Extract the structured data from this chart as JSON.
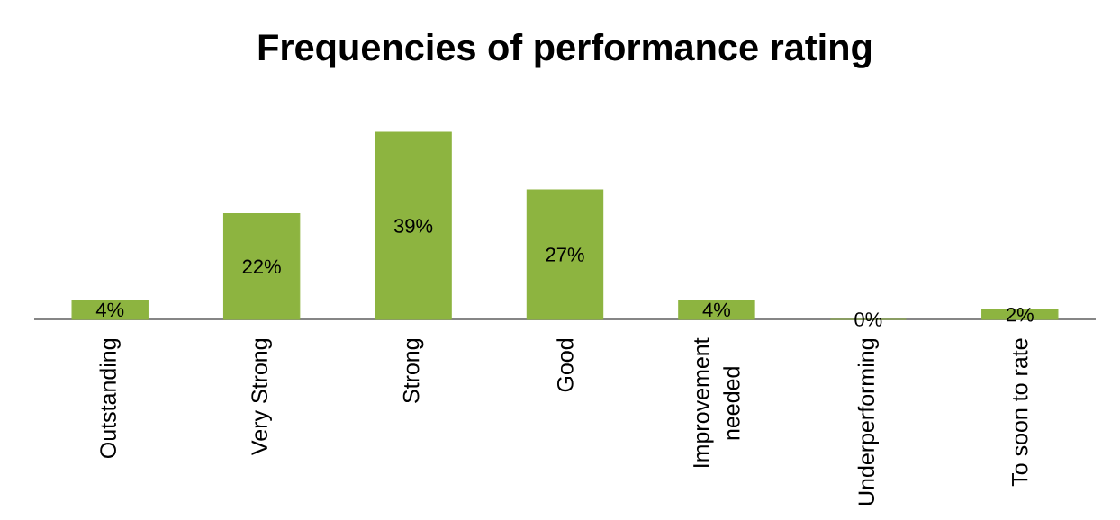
{
  "chart_data": {
    "type": "bar",
    "title": "Frequencies of performance rating",
    "categories": [
      "Outstanding",
      "Very Strong",
      "Strong",
      "Good",
      "Improvement needed",
      "Underperforming",
      "To soon to rate"
    ],
    "values": [
      4,
      22,
      39,
      27,
      4,
      0,
      2
    ],
    "value_labels": [
      "4%",
      "22%",
      "39%",
      "27%",
      "4%",
      "0%",
      "2%"
    ],
    "color": "#8db440"
  }
}
